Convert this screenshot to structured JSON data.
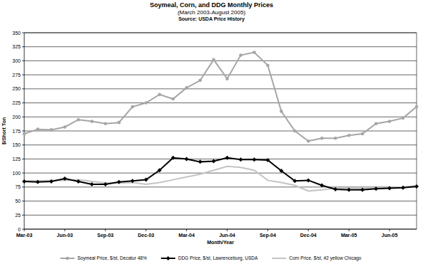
{
  "chart_data": {
    "type": "line",
    "title": "Soymeal, Corn, and DDG Monthly Prices",
    "subtitle": "(March 2003-August 2005)",
    "source": "Source: USDA Price History",
    "x_label": "Month/Year",
    "y_label": "$/Short Ton",
    "categories": [
      "Mar-03",
      null,
      null,
      "Jun-03",
      null,
      null,
      "Sep-03",
      null,
      null,
      "Dec-03",
      null,
      null,
      "Mar-04",
      null,
      null,
      "Jun-04",
      null,
      null,
      "Sep-04",
      null,
      null,
      "Dec-04",
      null,
      null,
      "Mar-05",
      null,
      null,
      "Jun-05",
      null,
      null
    ],
    "series": [
      {
        "name": "Soymeal Price, $/st, Decatur 48%",
        "color": "#a6a6a6",
        "marker": "circle",
        "line_style": "solid",
        "values": [
          170,
          178,
          177,
          182,
          195,
          192,
          188,
          190,
          218,
          225,
          240,
          232,
          252,
          265,
          302,
          268,
          310,
          315,
          292,
          210,
          175,
          157,
          162,
          162,
          167,
          170,
          188,
          192,
          198,
          218
        ]
      },
      {
        "name": "DDG Price, $/st, Lawrenceburg, USDA",
        "color": "#000000",
        "marker": "diamond",
        "line_style": "solid",
        "values": [
          85,
          84,
          85,
          90,
          85,
          80,
          80,
          84,
          86,
          88,
          105,
          127,
          125,
          120,
          121,
          127,
          124,
          124,
          123,
          104,
          86,
          87,
          78,
          71,
          70,
          70,
          72,
          73,
          74,
          76
        ]
      },
      {
        "name": "Corn Price, $/st, #2 yellow Chicago",
        "color": "#c4c4c4",
        "line_style": "solid",
        "values": [
          86,
          86,
          87,
          87,
          88,
          85,
          82,
          82,
          83,
          80,
          83,
          88,
          93,
          98,
          105,
          112,
          110,
          105,
          87,
          83,
          78,
          68,
          70,
          73,
          73,
          72,
          73,
          74,
          75,
          77
        ]
      }
    ],
    "ylim": [
      0,
      350
    ],
    "yticks": [
      0,
      25,
      50,
      75,
      100,
      125,
      150,
      175,
      200,
      225,
      250,
      275,
      300,
      325,
      350
    ],
    "grid": true,
    "legend": "bottom"
  }
}
